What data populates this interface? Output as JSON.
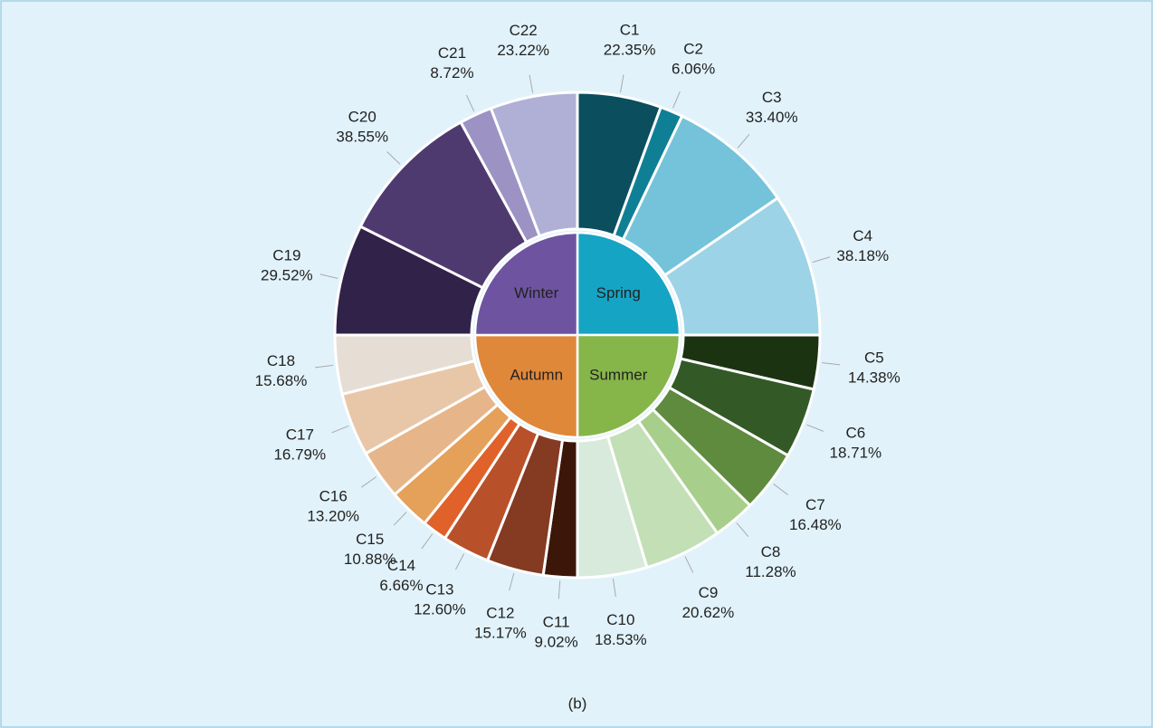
{
  "chart_data": {
    "type": "sunburst",
    "caption": "(b)",
    "series": [
      {
        "name": "Spring",
        "color": "#16a4c4",
        "categories": [
          "C1",
          "C2",
          "C3",
          "C4"
        ],
        "values": [
          22.35,
          6.06,
          33.4,
          38.18
        ],
        "value_labels": [
          "22.35%",
          "6.06%",
          "33.40%",
          "38.18%"
        ],
        "colors": [
          "#0b4e5e",
          "#0f7f96",
          "#74c3da",
          "#9dd3e6"
        ]
      },
      {
        "name": "Summer",
        "color": "#86b54a",
        "categories": [
          "C5",
          "C6",
          "C7",
          "C8",
          "C9",
          "C10"
        ],
        "values": [
          14.38,
          18.71,
          16.48,
          11.28,
          20.62,
          18.53
        ],
        "value_labels": [
          "14.38%",
          "18.71%",
          "16.48%",
          "11.28%",
          "20.62%",
          "18.53%"
        ],
        "colors": [
          "#1c3312",
          "#335a26",
          "#5e8b3e",
          "#a7cf8b",
          "#c3dfb5",
          "#d8eadc"
        ]
      },
      {
        "name": "Autumn",
        "color": "#e0883a",
        "categories": [
          "C11",
          "C12",
          "C13",
          "C14",
          "C15",
          "C16",
          "C17",
          "C18"
        ],
        "values": [
          9.02,
          15.17,
          12.6,
          6.66,
          10.88,
          13.2,
          16.79,
          15.68
        ],
        "value_labels": [
          "9.02%",
          "15.17%",
          "12.60%",
          "6.66%",
          "10.88%",
          "13.20%",
          "16.79%",
          "15.68%"
        ],
        "colors": [
          "#3c1608",
          "#853a22",
          "#b8512a",
          "#e0622a",
          "#e5a05a",
          "#e6b68a",
          "#e8c7a8",
          "#e6ded5"
        ]
      },
      {
        "name": "Winter",
        "color": "#6e54a0",
        "categories": [
          "C19",
          "C20",
          "C21",
          "C22"
        ],
        "values": [
          29.52,
          38.55,
          8.72,
          23.22
        ],
        "value_labels": [
          "29.52%",
          "38.55%",
          "8.72%",
          "23.22%"
        ],
        "colors": [
          "#31224a",
          "#4f3a70",
          "#9d92c4",
          "#b0b0d6"
        ]
      }
    ]
  }
}
